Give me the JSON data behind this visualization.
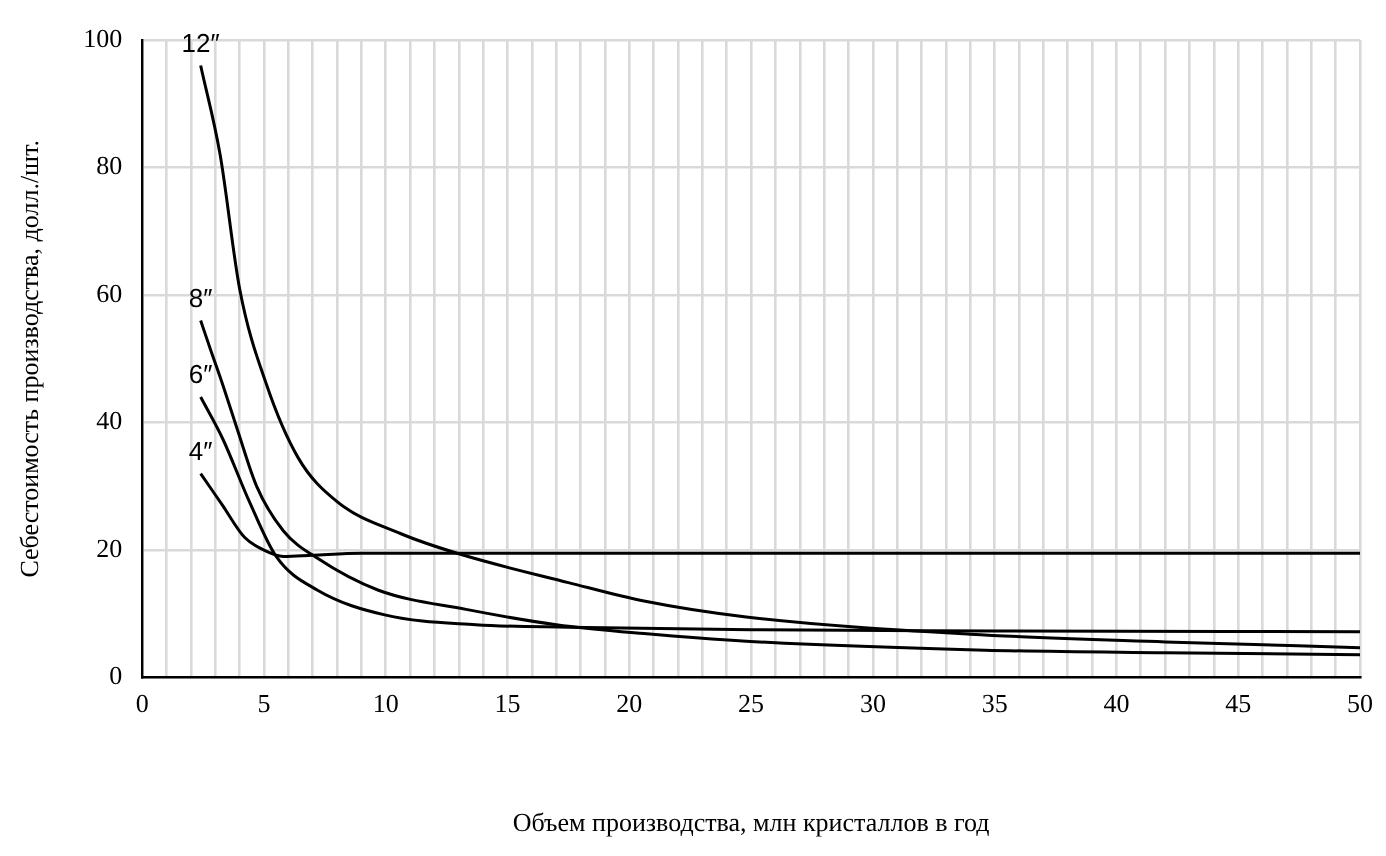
{
  "chart_data": {
    "type": "line",
    "xlabel": "Объем производства, млн кристаллов в год",
    "ylabel": "Себестоимость производства, долл./шт.",
    "xlim": [
      0,
      50
    ],
    "ylim": [
      0,
      100
    ],
    "xticks": [
      0,
      {
        "value": 1,
        "label": null
      },
      {
        "value": 2,
        "label": null
      },
      {
        "value": 3,
        "label": null
      },
      {
        "value": 4,
        "label": null
      },
      5,
      {
        "value": 6,
        "label": null
      },
      {
        "value": 7,
        "label": null
      },
      {
        "value": 8,
        "label": null
      },
      {
        "value": 9,
        "label": null
      },
      10,
      {
        "value": 11,
        "label": null
      },
      {
        "value": 12,
        "label": null
      },
      {
        "value": 13,
        "label": null
      },
      {
        "value": 14,
        "label": null
      },
      15,
      {
        "value": 16,
        "label": null
      },
      {
        "value": 17,
        "label": null
      },
      {
        "value": 18,
        "label": null
      },
      {
        "value": 19,
        "label": null
      },
      20,
      {
        "value": 21,
        "label": null
      },
      {
        "value": 22,
        "label": null
      },
      {
        "value": 23,
        "label": null
      },
      {
        "value": 24,
        "label": null
      },
      25,
      {
        "value": 26,
        "label": null
      },
      {
        "value": 27,
        "label": null
      },
      {
        "value": 28,
        "label": null
      },
      {
        "value": 29,
        "label": null
      },
      30,
      {
        "value": 31,
        "label": null
      },
      {
        "value": 32,
        "label": null
      },
      {
        "value": 33,
        "label": null
      },
      {
        "value": 34,
        "label": null
      },
      35,
      {
        "value": 36,
        "label": null
      },
      {
        "value": 37,
        "label": null
      },
      {
        "value": 38,
        "label": null
      },
      {
        "value": 39,
        "label": null
      },
      40,
      {
        "value": 41,
        "label": null
      },
      {
        "value": 42,
        "label": null
      },
      {
        "value": 43,
        "label": null
      },
      {
        "value": 44,
        "label": null
      },
      45,
      {
        "value": 46,
        "label": null
      },
      {
        "value": 47,
        "label": null
      },
      {
        "value": 48,
        "label": null
      },
      {
        "value": 49,
        "label": null
      },
      50
    ],
    "yticks": [
      0,
      20,
      40,
      60,
      80,
      100
    ],
    "grid": true,
    "legend": false,
    "marker": "none",
    "line_style": "solid",
    "series": [
      {
        "name": "12″",
        "color": "#000000",
        "x": [
          2.4,
          3.2,
          4,
          5.1,
          6.4,
          8,
          10.6,
          13.1,
          17.5,
          20.6,
          24.8,
          34,
          42,
          50
        ],
        "values": [
          96,
          82,
          61,
          46,
          34.5,
          27.6,
          22.6,
          19.3,
          14.9,
          12,
          9.5,
          6.8,
          5.6,
          4.7
        ]
      },
      {
        "name": "8″",
        "color": "#000000",
        "x": [
          2.4,
          2.8,
          3.3,
          3.9,
          4.7,
          5.8,
          7.2,
          9.7,
          13.3,
          17,
          20.6,
          24.8,
          34.6,
          42,
          50
        ],
        "values": [
          56,
          51.5,
          46,
          39,
          30,
          23,
          18.7,
          13.7,
          10.7,
          8.3,
          6.9,
          5.7,
          4.3,
          3.9,
          3.6
        ]
      },
      {
        "name": "6″",
        "color": "#000000",
        "x": [
          2.4,
          3.3,
          4.4,
          5.5,
          7.2,
          10,
          13.7,
          17.5,
          25,
          35,
          50
        ],
        "values": [
          44,
          37.5,
          27.6,
          19,
          13.7,
          9.8,
          8.3,
          7.9,
          7.5,
          7.3,
          7.2
        ]
      },
      {
        "name": "4″",
        "color": "#000000",
        "x": [
          2.4,
          3.3,
          4.2,
          5,
          5.8,
          7,
          9,
          12,
          20,
          35,
          50
        ],
        "values": [
          32,
          27,
          22,
          20,
          19,
          19.2,
          19.5,
          19.5,
          19.5,
          19.5,
          19.5
        ]
      }
    ]
  }
}
